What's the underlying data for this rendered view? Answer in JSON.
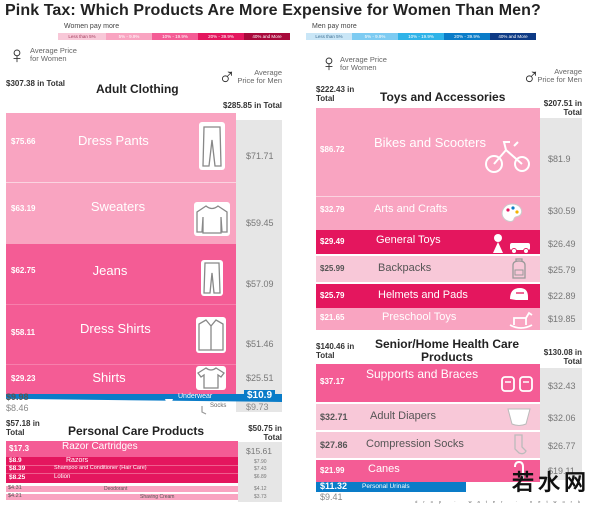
{
  "title": "Pink Tax: Which Products Are More Expensive for Women Than Men?",
  "colors": {
    "women_legend": [
      "#f8c8d8",
      "#f9a4c1",
      "#f45c95",
      "#e4165e",
      "#a8093b"
    ],
    "men_legend": [
      "#c9e6f7",
      "#7dcbf2",
      "#2fb3e8",
      "#0a7cc8",
      "#0d3a85"
    ],
    "men_column": "#e6e6e6",
    "band_text_light": "#ffffff",
    "band_text_dark": "#555555"
  },
  "legend_women": {
    "heading": "Women pay more",
    "items": [
      "Less than 5%",
      "5% - 9.9%",
      "10% - 19.9%",
      "20% - 39.9%",
      "40% and More"
    ]
  },
  "legend_men": {
    "heading": "Men pay more",
    "items": [
      "Less than 5%",
      "5% - 9.9%",
      "10% - 19.9%",
      "20% - 39.9%",
      "40% and More"
    ]
  },
  "labels": {
    "avg_women": "Average Price for Women",
    "avg_men": "Average Price for Men",
    "female_symbol": "♀",
    "male_symbol": "♂"
  },
  "chart_data": [
    {
      "type": "table",
      "title": "Adult Clothing",
      "women_total": "$307.38 in Total",
      "men_total": "$285.85 in Total",
      "rows": [
        {
          "name": "Dress Pants",
          "women": "$75.66",
          "men": "$71.71",
          "icon": "pants-icon",
          "color": "#f9a4c1"
        },
        {
          "name": "Sweaters",
          "women": "$63.19",
          "men": "$59.45",
          "icon": "sweater-icon",
          "color": "#f9a4c1"
        },
        {
          "name": "Jeans",
          "women": "$62.75",
          "men": "$57.09",
          "icon": "jeans-icon",
          "color": "#f45c95"
        },
        {
          "name": "Dress Shirts",
          "women": "$58.11",
          "men": "$51.46",
          "icon": "dress-shirt-icon",
          "color": "#f45c95"
        },
        {
          "name": "Shirts",
          "women": "$29.23",
          "men": "$25.51",
          "icon": "shirt-icon",
          "color": "#f45c95"
        },
        {
          "name": "Underwear",
          "women": "$9.98",
          "men": "$10.9",
          "icon": "underwear-icon",
          "color": "#0a7cc8"
        },
        {
          "name": "Socks",
          "women": "$8.46",
          "men": "$9.73",
          "icon": "socks-icon",
          "color": "#ffffff"
        }
      ]
    },
    {
      "type": "table",
      "title": "Personal Care Products",
      "women_total": "$57.18 in Total",
      "men_total": "$50.75 in Total",
      "rows": [
        {
          "name": "Razor Cartridges",
          "women": "$17.3",
          "men": "$15.61",
          "color": "#f45c95"
        },
        {
          "name": "Razors",
          "women": "$8.9",
          "men": "$7.90",
          "color": "#e4165e"
        },
        {
          "name": "Shampoo and Conditioner (Hair Care)",
          "women": "$8.39",
          "men": "$7.43",
          "color": "#e4165e"
        },
        {
          "name": "Lotion",
          "women": "$8.25",
          "men": "$6.89",
          "color": "#e4165e"
        },
        {
          "name": "Deodorant",
          "women": "$4.31",
          "men": "$4.12",
          "color": "#f9a4c1"
        },
        {
          "name": "Shaving Cream",
          "women": "$4.21",
          "men": "$3.73",
          "color": "#f9a4c1"
        }
      ]
    },
    {
      "type": "table",
      "title": "Toys and Accessories",
      "women_total": "$222.43 in Total",
      "men_total": "$207.51 in Total",
      "rows": [
        {
          "name": "Bikes and Scooters",
          "women": "$86.72",
          "men": "$81.9",
          "icon": "tricycle-icon",
          "color": "#f9a4c1"
        },
        {
          "name": "Arts and Crafts",
          "women": "$32.79",
          "men": "$30.59",
          "icon": "palette-icon",
          "color": "#f9a4c1"
        },
        {
          "name": "General Toys",
          "women": "$29.49",
          "men": "$26.49",
          "icon": "toys-icon",
          "color": "#e4165e"
        },
        {
          "name": "Backpacks",
          "women": "$25.99",
          "men": "$25.79",
          "icon": "backpack-icon",
          "color": "#f8c8d8"
        },
        {
          "name": "Helmets and Pads",
          "women": "$25.79",
          "men": "$22.89",
          "icon": "helmet-icon",
          "color": "#e4165e"
        },
        {
          "name": "Preschool Toys",
          "women": "$21.65",
          "men": "$19.85",
          "icon": "rocking-horse-icon",
          "color": "#f9a4c1"
        }
      ]
    },
    {
      "type": "table",
      "title": "Senior/Home Health Care Products",
      "women_total": "$140.46 in Total",
      "men_total": "$130.08 in Total",
      "rows": [
        {
          "name": "Supports and Braces",
          "women": "$37.17",
          "men": "$32.43",
          "icon": "brace-icon",
          "color": "#f45c95"
        },
        {
          "name": "Adult Diapers",
          "women": "$32.71",
          "men": "$32.06",
          "icon": "diaper-icon",
          "color": "#f8c8d8"
        },
        {
          "name": "Compression Socks",
          "women": "$27.86",
          "men": "$26.77",
          "icon": "sock-icon",
          "color": "#f8c8d8"
        },
        {
          "name": "Canes",
          "women": "$21.99",
          "men": "$19.11",
          "icon": "cane-icon",
          "color": "#f45c95"
        },
        {
          "name": "Personal Urinals",
          "women": "$11.32",
          "men": "",
          "color": "#0a7cc8"
        },
        {
          "name": "",
          "women": "$9.41",
          "men": "",
          "color": "#ffffff"
        }
      ]
    }
  ],
  "watermark": {
    "text": "若水网",
    "sub": "drop · water · network"
  }
}
